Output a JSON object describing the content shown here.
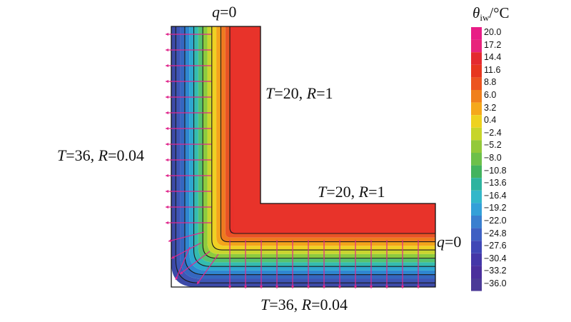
{
  "labels": {
    "top": "q=0",
    "right": "q=0",
    "inner_vertical": "T=20, R=1",
    "inner_horizontal": "T=20, R=1",
    "outer_left": "T=36, R=0.04",
    "outer_bottom": "T=36, R=0.04"
  },
  "legend": {
    "symbol": "θ",
    "subscript": "iw",
    "unit": "/°C",
    "ticks": [
      "20.0",
      "17.2",
      "14.4",
      "11.6",
      "8.8",
      "6.0",
      "3.2",
      "0.4",
      "−2.4",
      "−5.2",
      "−8.0",
      "−10.8",
      "−13.6",
      "−16.4",
      "−19.2",
      "−22.0",
      "−24.8",
      "−27.6",
      "−30.4",
      "−33.2",
      "−36.0"
    ],
    "colors": [
      "#e81d86",
      "#e8247c",
      "#e42a30",
      "#e7361f",
      "#ec5420",
      "#f0801c",
      "#f5a81b",
      "#eed21f",
      "#c7d52a",
      "#93c93a",
      "#6dc04a",
      "#43b35f",
      "#2db39f",
      "#33b7c9",
      "#34a0d8",
      "#3a7fcf",
      "#3e60c3",
      "#3f47b6",
      "#4437a8",
      "#4a2f9c",
      "#4b3a97"
    ]
  },
  "bands": [
    "#3d4aa8",
    "#3e55b5",
    "#3567c0",
    "#2f86d0",
    "#2ea7cf",
    "#34bcb0",
    "#55c270",
    "#8ccb3f",
    "#c9d52f",
    "#efd123",
    "#f3a41c",
    "#ee7a1f",
    "#e85325"
  ],
  "accent": "#e0288d"
}
